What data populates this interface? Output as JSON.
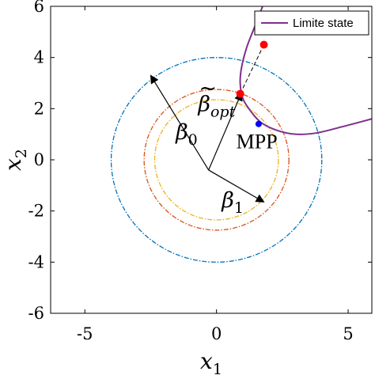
{
  "chart_data": {
    "type": "scatter",
    "title": "",
    "xlabel": "x",
    "xlabel_sub": "1",
    "ylabel": "x",
    "ylabel_sub": "2",
    "xlim": [
      -6.3,
      5.9
    ],
    "ylim": [
      -6,
      6
    ],
    "xticks": [
      -5,
      0,
      5
    ],
    "xtick_labels": [
      "-5",
      "0",
      "5"
    ],
    "yticks": [
      -6,
      -4,
      -2,
      0,
      2,
      4,
      6
    ],
    "ytick_labels": [
      "-6",
      "-4",
      "-2",
      "0",
      "2",
      "4",
      "6"
    ],
    "grid": false,
    "legend": {
      "placement": "top-right",
      "entries": [
        {
          "name": "Limite state",
          "color": "#7E2F8E"
        }
      ]
    },
    "circles": [
      {
        "radius": 4.0,
        "color": "#0072BD",
        "style": "dash-dot"
      },
      {
        "radius": 2.75,
        "color": "#D95319",
        "style": "dash-dot"
      },
      {
        "radius": 2.35,
        "color": "#EDB120",
        "style": "dash-dot"
      }
    ],
    "limit_state_curve": {
      "name": "Limite state",
      "color": "#7E2F8E",
      "points": [
        [
          1.75,
          6.0
        ],
        [
          1.45,
          5.2
        ],
        [
          1.15,
          4.4
        ],
        [
          0.95,
          3.6
        ],
        [
          0.9,
          3.0
        ],
        [
          1.0,
          2.4
        ],
        [
          1.3,
          1.9
        ],
        [
          1.7,
          1.45
        ],
        [
          2.3,
          1.15
        ],
        [
          3.0,
          1.0
        ],
        [
          3.8,
          1.05
        ],
        [
          4.8,
          1.3
        ],
        [
          5.9,
          1.6
        ]
      ]
    },
    "points": [
      {
        "name": "red-point-design",
        "x": 0.9,
        "y": 2.58,
        "color": "#FF0000"
      },
      {
        "name": "red-point-upper",
        "x": 1.8,
        "y": 4.5,
        "color": "#FF0000"
      },
      {
        "name": "blue-point-mpp",
        "x": 1.6,
        "y": 1.4,
        "color": "#0000FF"
      }
    ],
    "vectors": [
      {
        "name": "beta0-vector",
        "from": [
          -0.3,
          -0.4
        ],
        "to": [
          -2.5,
          3.3
        ]
      },
      {
        "name": "beta-opt-vector",
        "from": [
          -0.3,
          -0.4
        ],
        "to": [
          0.95,
          2.62
        ]
      },
      {
        "name": "beta1-vector",
        "from": [
          -0.3,
          -0.4
        ],
        "to": [
          1.8,
          -1.65
        ]
      }
    ],
    "dashed_line": {
      "from": [
        0.9,
        2.58
      ],
      "to": [
        1.8,
        4.5
      ],
      "color": "#000000"
    },
    "annotations": [
      {
        "name": "beta0-label",
        "symbol": "β",
        "sub": "0",
        "x": -1.55,
        "y": 0.8
      },
      {
        "name": "beta1-label",
        "symbol": "β",
        "sub": "1",
        "x": 0.2,
        "y": -1.85
      },
      {
        "name": "beta-opt-label",
        "symbol": "β",
        "sub": "opt",
        "tilde": "~",
        "x": -0.7,
        "y": 1.9
      },
      {
        "name": "mpp-label",
        "text": "MPP",
        "x": 0.75,
        "y": 0.45
      }
    ]
  }
}
